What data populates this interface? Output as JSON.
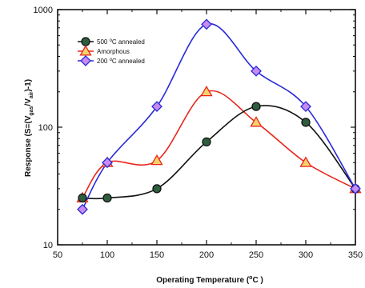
{
  "chart_data": {
    "type": "line",
    "xlabel": {
      "pre": "Operating Temperature (",
      "sup": "o",
      "post": "C )"
    },
    "ylabel": {
      "pre": "Response (S=(V",
      "sub1": "gas",
      "mid": "/V",
      "sub2": "air",
      "post": ")-1)"
    },
    "xlim": [
      50,
      350
    ],
    "ylim": [
      10,
      1000
    ],
    "yscale": "log",
    "xticks": [
      50,
      100,
      150,
      200,
      250,
      300,
      350
    ],
    "yticks": [
      10,
      100,
      1000
    ],
    "legend_position": "top-left",
    "series": [
      {
        "name": {
          "pre": "500 ",
          "sup": "o",
          "post": "C annealed"
        },
        "marker": "circle",
        "color": "#111111",
        "fill": "#2e5e3e",
        "x": [
          75,
          100,
          150,
          200,
          250,
          300,
          350
        ],
        "y": [
          25,
          25,
          30,
          75,
          150,
          110,
          30
        ]
      },
      {
        "name": {
          "pre": "Amorphous",
          "sup": "",
          "post": ""
        },
        "marker": "triangle",
        "color": "#e8261c",
        "fill": "#f6d36a",
        "x": [
          75,
          100,
          150,
          200,
          250,
          300,
          350
        ],
        "y": [
          25,
          50,
          52,
          200,
          110,
          50,
          30
        ]
      },
      {
        "name": {
          "pre": "200 ",
          "sup": "o",
          "post": "C annealed"
        },
        "marker": "diamond",
        "color": "#2b2bd9",
        "fill": "#c98bf0",
        "x": [
          75,
          100,
          150,
          200,
          250,
          300,
          350
        ],
        "y": [
          20,
          50,
          150,
          750,
          300,
          150,
          30
        ]
      }
    ]
  }
}
